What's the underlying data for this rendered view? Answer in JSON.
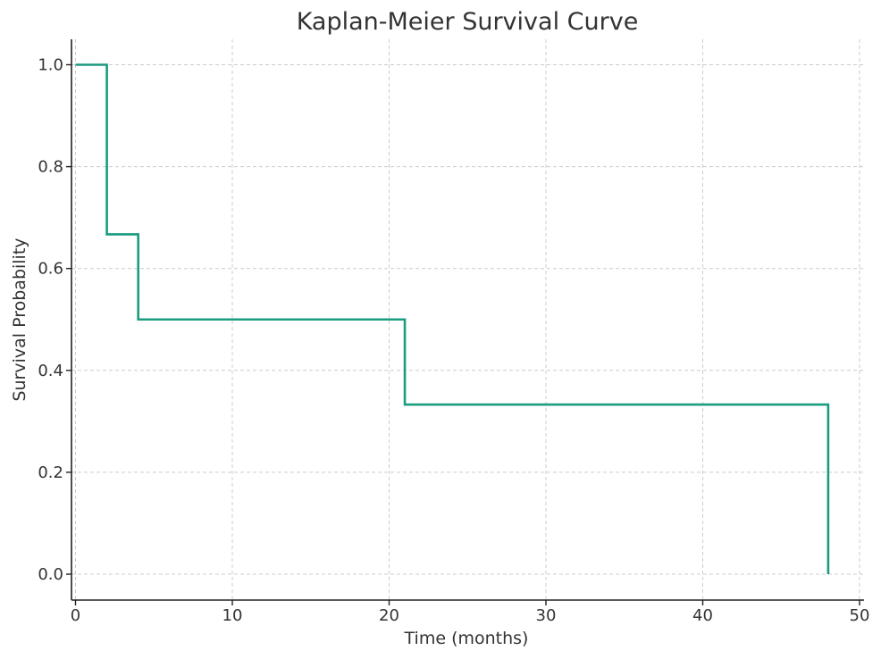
{
  "chart_data": {
    "type": "line",
    "step": true,
    "title": "Kaplan-Meier Survival Curve",
    "xlabel": "Time (months)",
    "ylabel": "Survival Probability",
    "xlim": [
      0,
      50
    ],
    "ylim": [
      0.0,
      1.0
    ],
    "xticks": [
      0,
      10,
      20,
      30,
      40,
      50
    ],
    "xtick_labels": [
      "0",
      "10",
      "20",
      "30",
      "40",
      "50"
    ],
    "yticks": [
      0.0,
      0.2,
      0.4,
      0.6,
      0.8,
      1.0
    ],
    "ytick_labels": [
      "0.0",
      "0.2",
      "0.4",
      "0.6",
      "0.8",
      "1.0"
    ],
    "grid": true,
    "series": [
      {
        "color": "#1a9c80",
        "x": [
          0,
          2,
          4,
          21,
          48
        ],
        "y": [
          1.0,
          0.667,
          0.5,
          0.333,
          0.0
        ]
      }
    ]
  }
}
